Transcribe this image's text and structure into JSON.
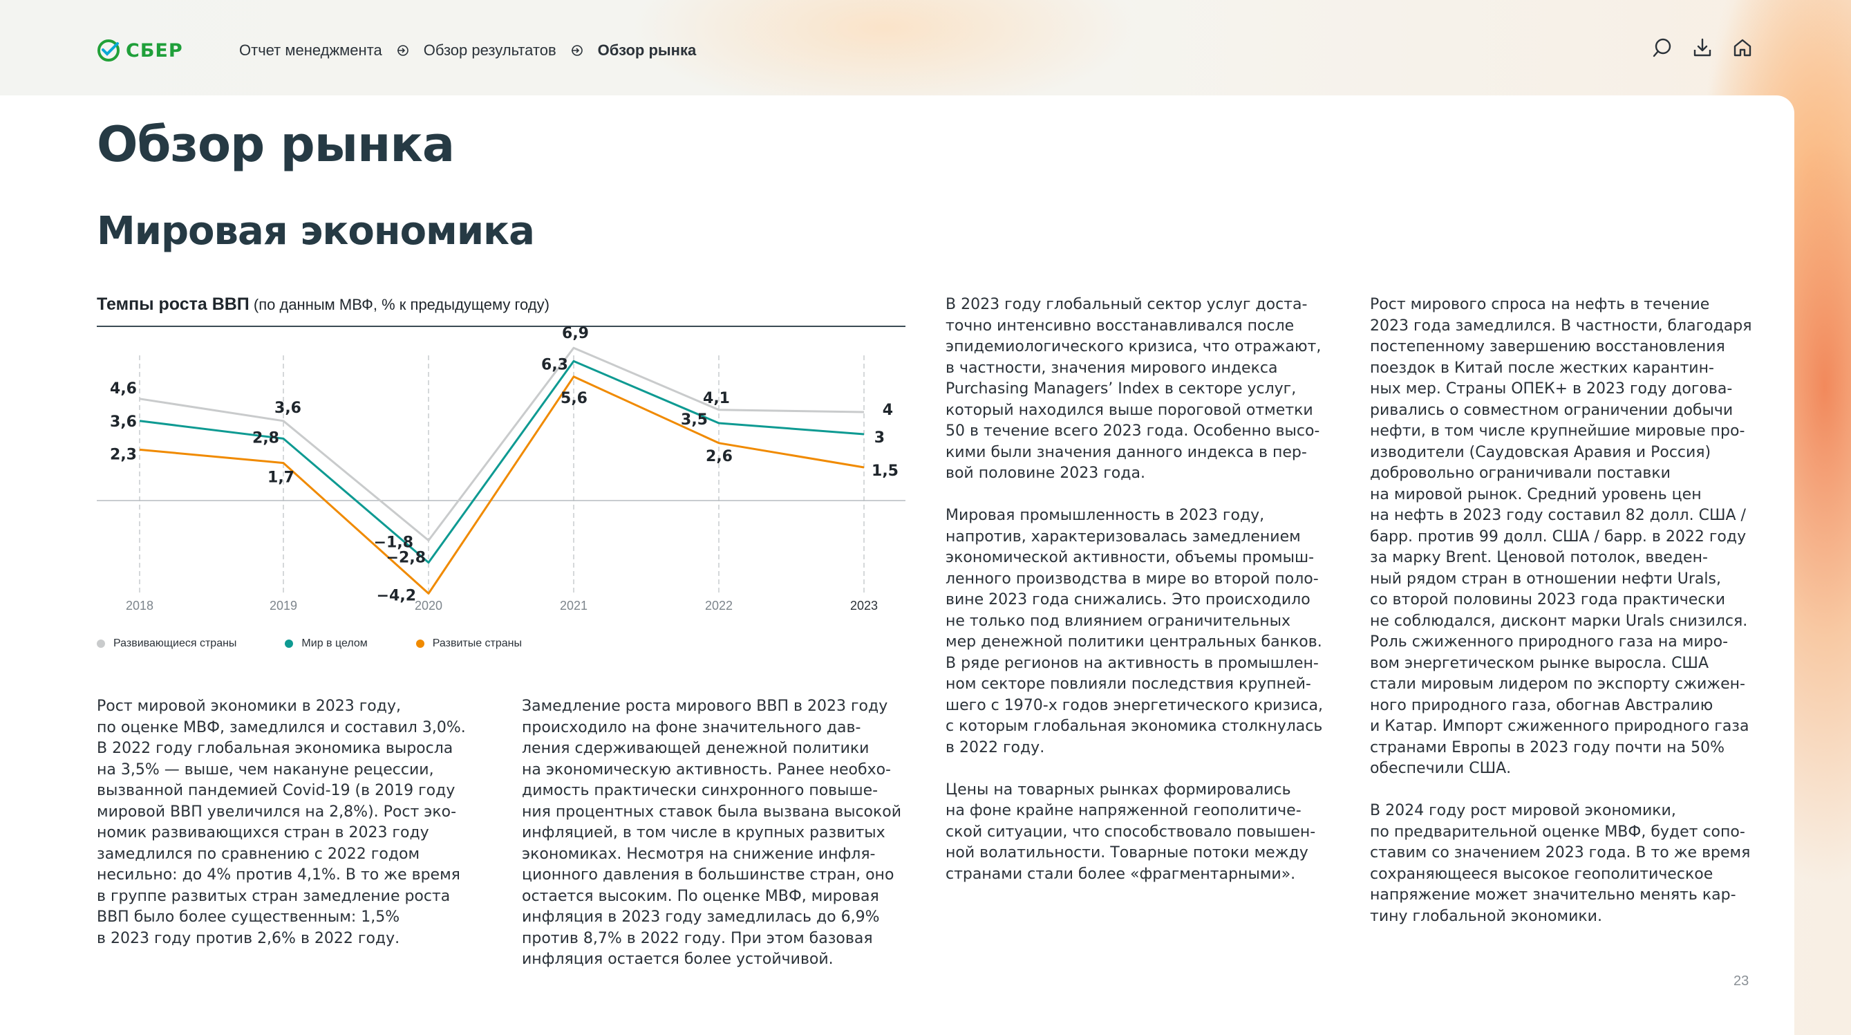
{
  "header": {
    "logo_text": "СБЕР",
    "breadcrumbs": [
      "Отчет менеджмента",
      "Обзор результатов",
      "Обзор рынка"
    ],
    "icons": [
      "search-icon",
      "download-icon",
      "home-icon"
    ],
    "brand_color": "#21a038"
  },
  "page": {
    "title": "Обзор рынка",
    "subtitle": "Мировая экономика",
    "number": "23"
  },
  "chart": {
    "title_bold": "Темпы роста ВВП",
    "title_note": " (по данным МВФ, % к предыдущему году)",
    "legend": [
      {
        "label": "Развивающиеся страны",
        "color": "#c9cbcc"
      },
      {
        "label": "Мир в целом",
        "color": "#0e9a92"
      },
      {
        "label": "Развитые страны",
        "color": "#f08a00"
      }
    ]
  },
  "chart_data": {
    "type": "line",
    "x": [
      "2018",
      "2019",
      "2020",
      "2021",
      "2022",
      "2023"
    ],
    "ylim": [
      -5,
      8
    ],
    "grid": "vertical dashed per year",
    "series": [
      {
        "name": "Развивающиеся страны",
        "color": "#c9cbcc",
        "values": [
          4.6,
          3.6,
          -1.8,
          6.9,
          4.1,
          4
        ],
        "labels": [
          "4,6",
          "3,6",
          "−1,8",
          "6,9",
          "4,1",
          "4"
        ]
      },
      {
        "name": "Мир в целом",
        "color": "#0e9a92",
        "values": [
          3.6,
          2.8,
          -2.8,
          6.3,
          3.5,
          3
        ],
        "labels": [
          "3,6",
          "2,8",
          "−2,8",
          "6,3",
          "3,5",
          "3"
        ]
      },
      {
        "name": "Развитые страны",
        "color": "#f08a00",
        "values": [
          2.3,
          1.7,
          -4.2,
          5.6,
          2.6,
          1.5
        ],
        "labels": [
          "2,3",
          "1,7",
          "−4,2",
          "5,6",
          "2,6",
          "1,5"
        ]
      }
    ]
  },
  "columns": {
    "a": [
      "Рост мировой экономики в 2023 году,\nпо оценке МВФ, замедлился и составил 3,0%.\nВ 2022 году глобальная экономика выросла\nна 3,5% — выше, чем накануне рецессии,\nвызванной пандемией Covid-19 (в 2019 году\nмировой ВВП увеличился на 2,8%). Рост эко-\nномик развивающихся стран в 2023 году\nзамедлился по сравнению с 2022 годом\nнесильно: до 4% против 4,1%. В то же время\nв группе развитых стран замедление роста\nВВП было более существенным: 1,5%\nв 2023 году против 2,6% в 2022 году."
    ],
    "b": [
      "Замедление роста мирового ВВП в 2023 году\nпроисходило на фоне значительного дав-\nления сдерживающей денежной политики\nна экономическую активность. Ранее необхо-\nдимость практически синхронного повыше-\nния процентных ставок была вызвана высокой\nинфляцией, в том числе в крупных развитых\nэкономиках. Несмотря на снижение инфля-\nционного давления в большинстве стран, оно\nостается высоким. По оценке МВФ, мировая\nинфляция в 2023 году замедлилась до 6,9%\nпротив 8,7% в 2022 году. При этом базовая\nинфляция остается более устойчивой."
    ],
    "c": [
      "В 2023 году глобальный сектор услуг доста-\nточно интенсивно восстанавливался после\nэпидемиологического кризиса, что отражают,\nв частности, значения мирового индекса\nPurchasing Managers’ Index в секторе услуг,\nкоторый находился выше пороговой отметки\n50 в течение всего 2023 года. Особенно высо-\nкими были значения данного индекса в пер-\nвой половине 2023 года.",
      "Мировая промышленность в 2023 году,\nнапротив, характеризовалась замедлением\nэкономической активности, объемы промыш-\nленного производства в мире во второй поло-\nвине 2023 года снижались. Это происходило\nне только под влиянием ограничительных\nмер денежной политики центральных банков.\nВ ряде регионов на активность в промышлен-\nном секторе повлияли последствия крупней-\nшего с 1970-х годов энергетического кризиса,\nс которым глобальная экономика столкнулась\nв 2022 году.",
      "Цены на товарных рынках формировались\nна фоне крайне напряженной геополитиче-\nской ситуации, что способствовало повышен-\nной волатильности. Товарные потоки между\nстранами стали более «фрагментарными»."
    ],
    "d": [
      "Рост мирового спроса на нефть в течение\n2023 года замедлился. В частности, благодаря\nпостепенному завершению восстановления\nпоездок в Китай после жестких карантин-\nных мер. Страны ОПЕК+ в 2023 году догова-\nривались о совместном ограничении добычи\nнефти, в том числе крупнейшие мировые про-\nизводители (Саудовская Аравия и Россия)\nдобровольно ограничивали поставки\nна мировой рынок. Средний уровень цен\nна нефть в 2023 году составил 82 долл. США /\nбарр. против 99 долл. США / барр. в 2022 году\nза марку Brent. Ценовой потолок, введен-\nный рядом стран в отношении нефти Urals,\nсо второй половины 2023 года практически\nне соблюдался, дисконт марки Urals снизился.\nРоль сжиженного природного газа на миро-\nвом энергетическом рынке выросла. США\nстали мировым лидером по экспорту сжижен-\nного природного газа, обогнав Австралию\nи Катар. Импорт сжиженного природного газа\nстранами Европы в 2023 году почти на 50%\nобеспечили США.",
      "В 2024 году рост мировой экономики,\nпо предварительной оценке МВФ, будет сопо-\nставим со значением 2023 года. В то же время\nсохраняющееся высокое геополитическое\nнапряжение может значительно менять кар-\nтину глобальной экономики."
    ]
  }
}
